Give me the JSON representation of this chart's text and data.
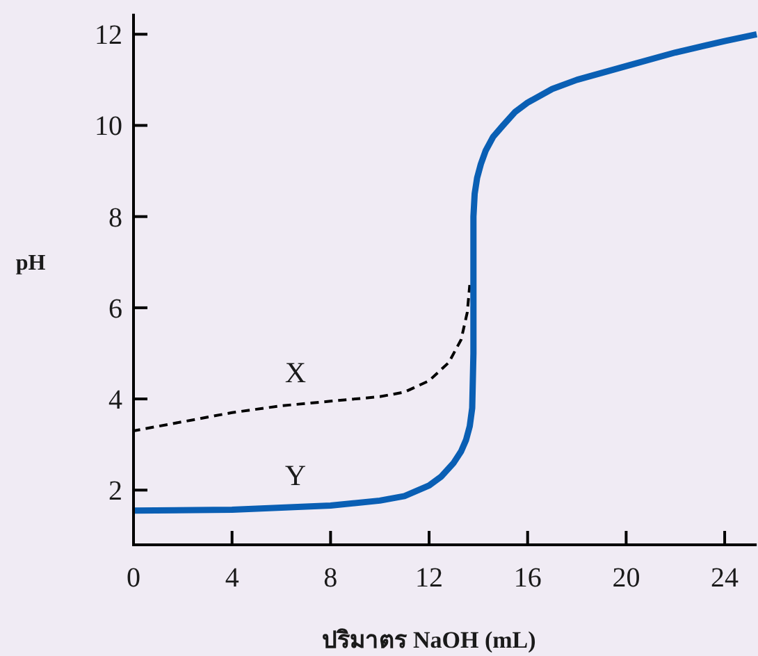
{
  "chart_data": {
    "type": "line",
    "xlabel": "ปริมาตร NaOH (mL)",
    "ylabel": "pH",
    "xlim": [
      0,
      25.3
    ],
    "ylim": [
      0.8,
      12.45
    ],
    "xticks": [
      0,
      4,
      8,
      12,
      16,
      20,
      24
    ],
    "yticks": [
      2,
      4,
      6,
      8,
      10,
      12
    ],
    "grid": false,
    "marker": "none",
    "series": [
      {
        "name": "X",
        "color": "#000000",
        "line_style": "dashed",
        "x": [
          0,
          2,
          4,
          6,
          8,
          10,
          11,
          12,
          12.8,
          13.3,
          13.55,
          13.65
        ],
        "values": [
          3.3,
          3.5,
          3.7,
          3.85,
          3.95,
          4.05,
          4.15,
          4.4,
          4.8,
          5.3,
          5.9,
          6.5
        ]
      },
      {
        "name": "Y",
        "color": "#0a5fb4",
        "line_style": "solid",
        "x": [
          0,
          4,
          8,
          10,
          11,
          12,
          12.5,
          13,
          13.3,
          13.5,
          13.65,
          13.75,
          13.8,
          13.8,
          13.85,
          13.95,
          14.1,
          14.3,
          14.6,
          15,
          15.5,
          16,
          17,
          18,
          20,
          22,
          24,
          25.3
        ],
        "values": [
          1.55,
          1.57,
          1.66,
          1.77,
          1.87,
          2.1,
          2.3,
          2.6,
          2.85,
          3.1,
          3.4,
          3.8,
          5,
          8,
          8.5,
          8.85,
          9.15,
          9.45,
          9.75,
          10.0,
          10.3,
          10.5,
          10.8,
          11,
          11.3,
          11.6,
          11.85,
          12
        ]
      }
    ]
  }
}
